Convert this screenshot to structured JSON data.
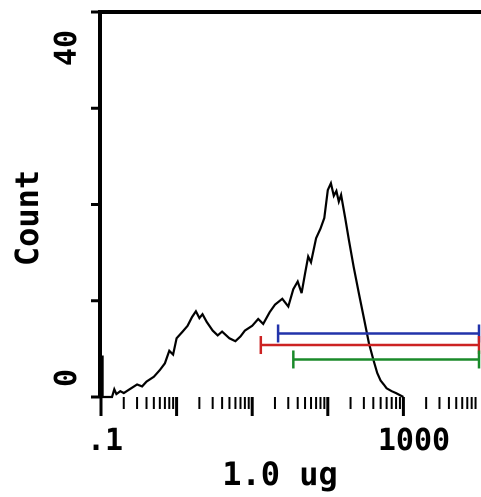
{
  "chart_data": {
    "type": "line",
    "title": "",
    "xlabel": "1.0 ug",
    "ylabel": "Count",
    "x_scale": "log",
    "xlim": [
      0.1,
      10000
    ],
    "ylim": [
      0,
      40
    ],
    "x_tick_labels": [
      {
        "value": 0.1,
        "label": ".1"
      },
      {
        "value": 1000,
        "label": "1000"
      }
    ],
    "y_tick_labels": [
      {
        "value": 0,
        "label": "0"
      },
      {
        "value": 40,
        "label": "40"
      }
    ],
    "y_minor_ticks": [
      0,
      10,
      20,
      30,
      40
    ],
    "grid": false,
    "colors": {
      "axis": "#000000",
      "histogram": "#000000",
      "marker_red": "#cc2222",
      "marker_blue": "#2233aa",
      "marker_green": "#1a8a2a"
    },
    "series": [
      {
        "values": [
          [
            0.1,
            4.2
          ],
          [
            0.105,
            4.2
          ],
          [
            0.105,
            0
          ],
          [
            0.14,
            0
          ],
          [
            0.15,
            0.8
          ],
          [
            0.16,
            0.3
          ],
          [
            0.18,
            0.6
          ],
          [
            0.2,
            0.4
          ],
          [
            0.25,
            0.9
          ],
          [
            0.3,
            1.3
          ],
          [
            0.35,
            1.1
          ],
          [
            0.4,
            1.6
          ],
          [
            0.5,
            2.1
          ],
          [
            0.6,
            2.8
          ],
          [
            0.7,
            3.5
          ],
          [
            0.8,
            4.8
          ],
          [
            0.9,
            4.4
          ],
          [
            1.0,
            6.1
          ],
          [
            1.2,
            6.8
          ],
          [
            1.4,
            7.4
          ],
          [
            1.6,
            8.3
          ],
          [
            1.8,
            8.9
          ],
          [
            2.0,
            8.2
          ],
          [
            2.2,
            8.6
          ],
          [
            2.5,
            7.8
          ],
          [
            3.0,
            6.9
          ],
          [
            3.5,
            6.4
          ],
          [
            4.0,
            6.8
          ],
          [
            5.0,
            6.1
          ],
          [
            6.0,
            5.8
          ],
          [
            7.0,
            6.3
          ],
          [
            8.0,
            6.9
          ],
          [
            10.0,
            7.4
          ],
          [
            12.0,
            8.1
          ],
          [
            14.0,
            7.6
          ],
          [
            17.0,
            8.8
          ],
          [
            20.0,
            9.6
          ],
          [
            25.0,
            10.2
          ],
          [
            30.0,
            9.4
          ],
          [
            35.0,
            11.2
          ],
          [
            40.0,
            12.0
          ],
          [
            45.0,
            10.8
          ],
          [
            50.0,
            12.8
          ],
          [
            55.0,
            14.6
          ],
          [
            60.0,
            14.0
          ],
          [
            70.0,
            16.5
          ],
          [
            80.0,
            17.5
          ],
          [
            90.0,
            18.6
          ],
          [
            100.0,
            21.5
          ],
          [
            110.0,
            22.2
          ],
          [
            120.0,
            20.9
          ],
          [
            130.0,
            21.4
          ],
          [
            140.0,
            20.3
          ],
          [
            150.0,
            21.0
          ],
          [
            170.0,
            18.6
          ],
          [
            190.0,
            16.3
          ],
          [
            220.0,
            13.5
          ],
          [
            260.0,
            10.6
          ],
          [
            300.0,
            8.2
          ],
          [
            350.0,
            5.6
          ],
          [
            400.0,
            3.9
          ],
          [
            450.0,
            2.5
          ],
          [
            500.0,
            1.7
          ],
          [
            550.0,
            1.3
          ],
          [
            600.0,
            0.9
          ],
          [
            700.0,
            0.6
          ],
          [
            800.0,
            0.4
          ],
          [
            1000.0,
            0.0
          ]
        ]
      }
    ],
    "markers": [
      {
        "color": "#2233aa",
        "y": 6.6,
        "x_start": 22,
        "x_end": 10000
      },
      {
        "color": "#cc2222",
        "y": 5.4,
        "x_start": 13,
        "x_end": 10000
      },
      {
        "color": "#1a8a2a",
        "y": 3.9,
        "x_start": 35,
        "x_end": 10000
      }
    ]
  }
}
